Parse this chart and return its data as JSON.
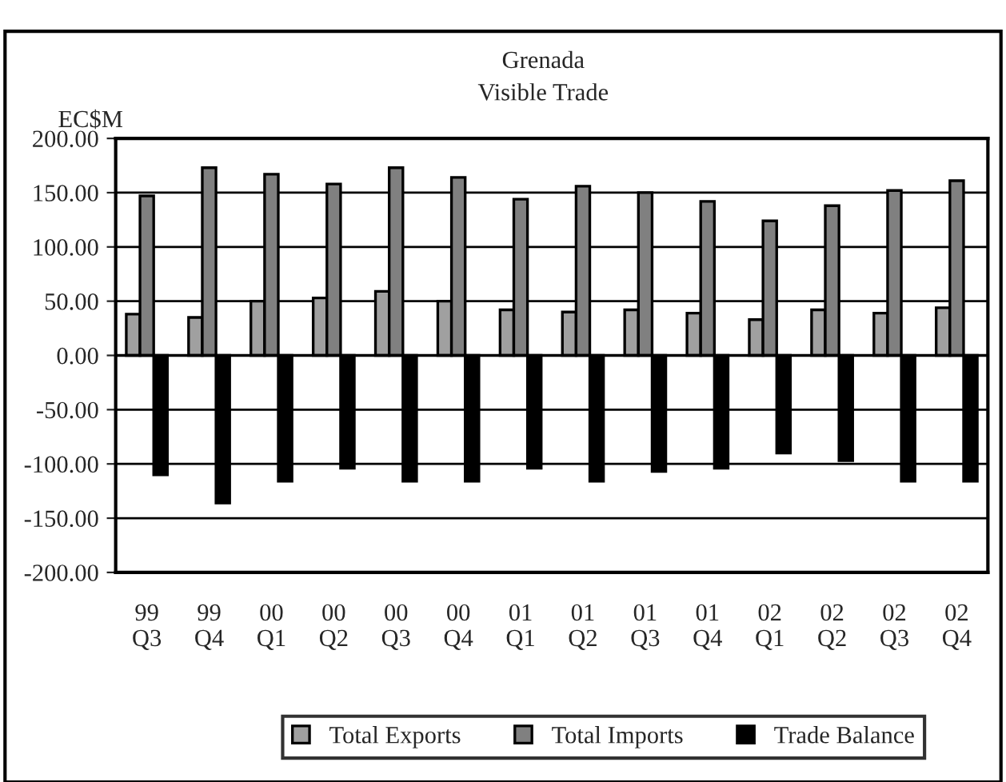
{
  "chart_data": {
    "type": "bar",
    "title": "Grenada\nVisible Trade",
    "ylabel": "EC$M",
    "categories": [
      "99\nQ3",
      "99\nQ4",
      "00\nQ1",
      "00\nQ2",
      "00\nQ3",
      "00\nQ4",
      "01\nQ1",
      "01\nQ2",
      "01\nQ3",
      "01\nQ4",
      "02\nQ1",
      "02\nQ2",
      "02\nQ3",
      "02\nQ4"
    ],
    "series": [
      {
        "name": "Total Exports",
        "color": "#a0a0a0",
        "values": [
          38,
          35,
          50,
          53,
          59,
          50,
          42,
          40,
          42,
          39,
          33,
          42,
          39,
          44
        ]
      },
      {
        "name": "Total Imports",
        "color": "#808080",
        "values": [
          147,
          173,
          167,
          158,
          173,
          164,
          144,
          156,
          150,
          142,
          124,
          138,
          152,
          161
        ]
      },
      {
        "name": "Trade Balance",
        "color": "#000000",
        "values": [
          -110,
          -136,
          -116,
          -104,
          -116,
          -116,
          -104,
          -116,
          -107,
          -104,
          -90,
          -97,
          -116,
          -116
        ]
      }
    ],
    "ylim": [
      -200,
      200
    ],
    "yticks": [
      {
        "value": -200,
        "label": "-200.00"
      },
      {
        "value": -150,
        "label": "-150.00"
      },
      {
        "value": -100,
        "label": "-100.00"
      },
      {
        "value": -50,
        "label": "-50.00"
      },
      {
        "value": 0,
        "label": "0.00"
      },
      {
        "value": 50,
        "label": "50.00"
      },
      {
        "value": 100,
        "label": "100.00"
      },
      {
        "value": 150,
        "label": "150.00"
      },
      {
        "value": 200,
        "label": "200.00"
      }
    ],
    "grid": "y",
    "legend": "bottom"
  }
}
